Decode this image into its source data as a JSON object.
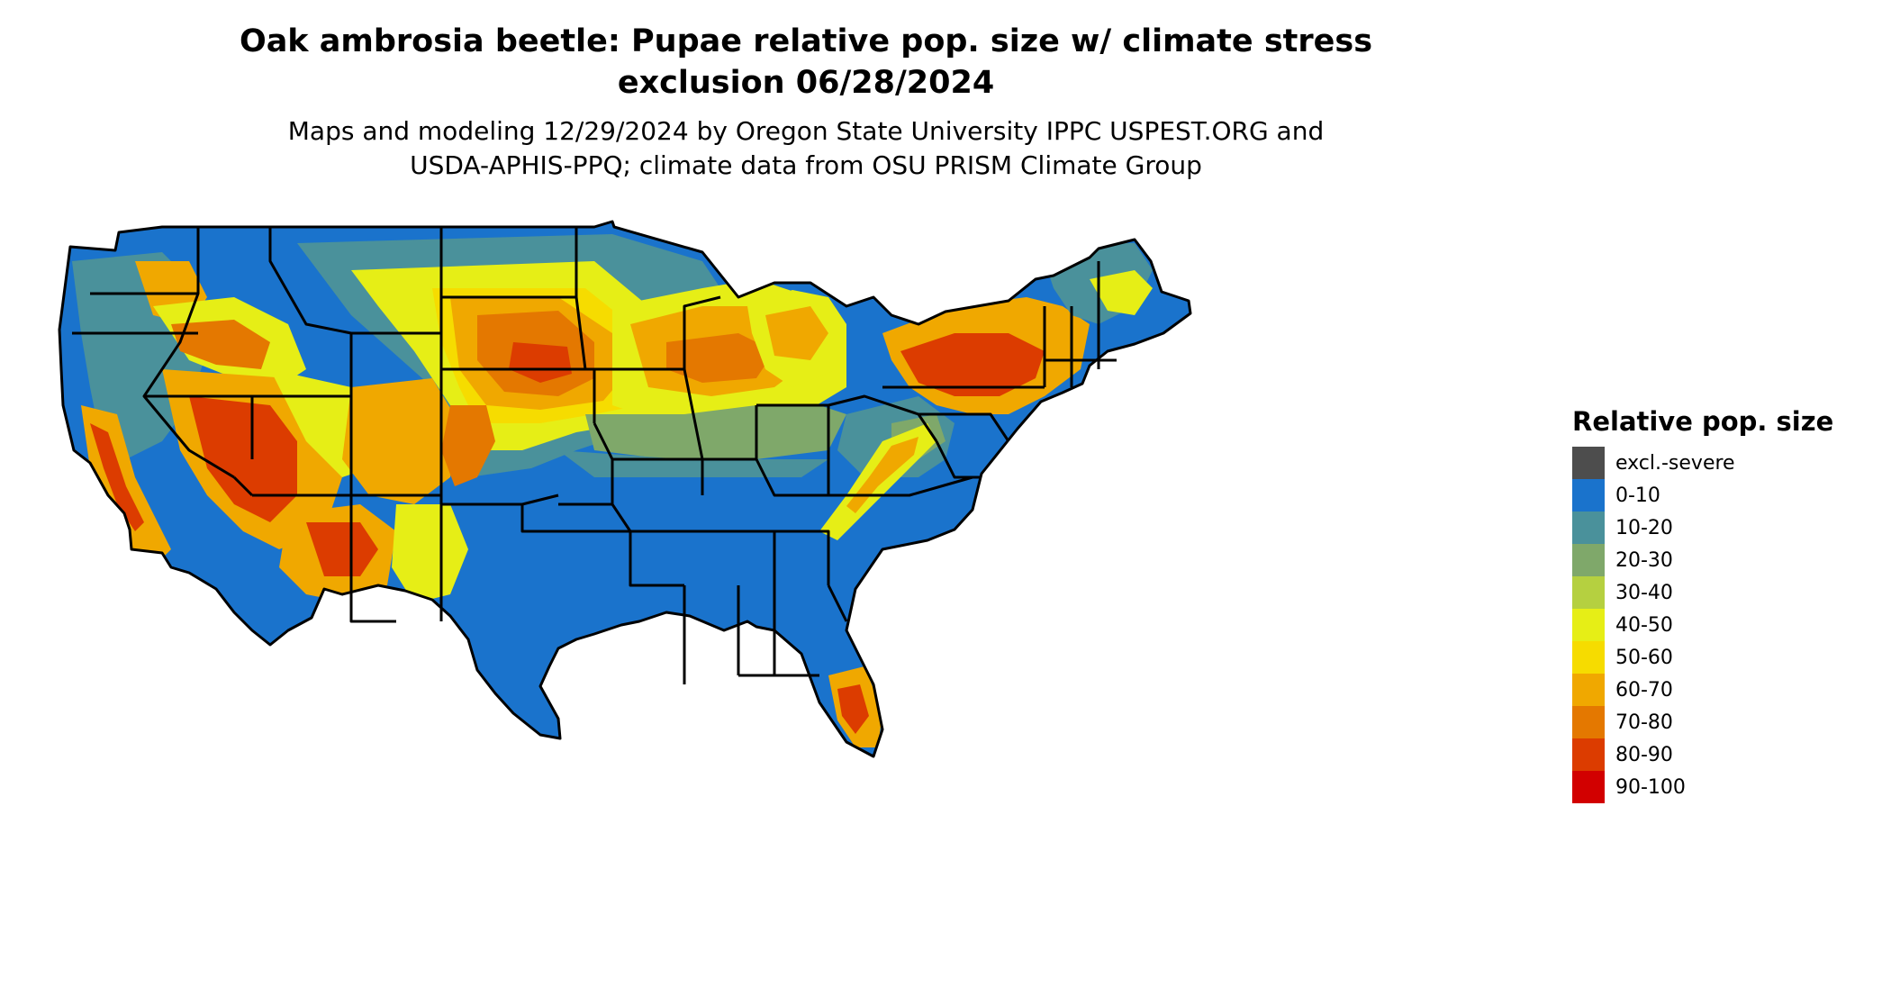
{
  "title_lines": [
    "Oak ambrosia beetle: Pupae relative pop. size w/ climate stress",
    "exclusion 06/28/2024"
  ],
  "subtitle_lines": [
    "Maps and modeling 12/29/2024 by Oregon State University IPPC USPEST.ORG and",
    "USDA-APHIS-PPQ; climate data from OSU PRISM Climate Group"
  ],
  "legend": {
    "title": "Relative pop. size",
    "items": [
      {
        "label": "excl.-severe",
        "color": "#4d4d4d"
      },
      {
        "label": "0-10",
        "color": "#1a73cc"
      },
      {
        "label": "10-20",
        "color": "#4a919b"
      },
      {
        "label": "20-30",
        "color": "#7fa86a"
      },
      {
        "label": "30-40",
        "color": "#b5d040"
      },
      {
        "label": "40-50",
        "color": "#e6ee16"
      },
      {
        "label": "50-60",
        "color": "#f6dc00"
      },
      {
        "label": "60-70",
        "color": "#f0a800"
      },
      {
        "label": "70-80",
        "color": "#e47800"
      },
      {
        "label": "80-90",
        "color": "#dc3c00"
      },
      {
        "label": "90-100",
        "color": "#d20000"
      }
    ]
  }
}
